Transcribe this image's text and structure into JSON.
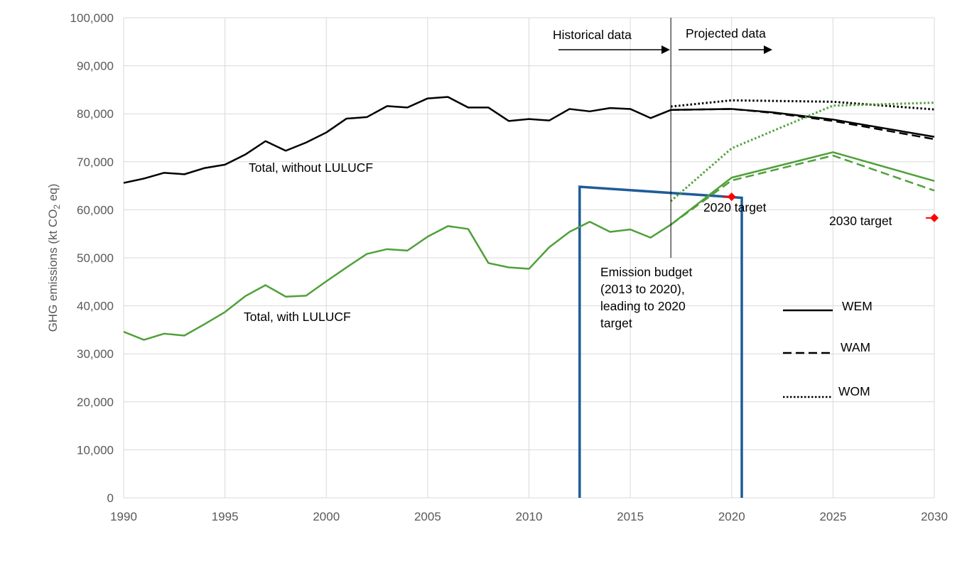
{
  "chart_data": {
    "type": "line",
    "ylabel": "GHG emissions (kt CO2 eq)",
    "ylabel_parts": {
      "before": "GHG emissions (kt CO",
      "sub": "2",
      "after": " eq)"
    },
    "xlim": [
      1990,
      2030
    ],
    "ylim": [
      0,
      100000
    ],
    "x_ticks": [
      1990,
      1995,
      2000,
      2005,
      2010,
      2015,
      2020,
      2025,
      2030
    ],
    "y_ticks": [
      0,
      10000,
      20000,
      30000,
      40000,
      50000,
      60000,
      70000,
      80000,
      90000,
      100000
    ],
    "x_tick_labels": [
      "1990",
      "1995",
      "2000",
      "2005",
      "2010",
      "2015",
      "2020",
      "2025",
      "2030"
    ],
    "y_tick_labels": [
      "0",
      "10,000",
      "20,000",
      "30,000",
      "40,000",
      "50,000",
      "60,000",
      "70,000",
      "80,000",
      "90,000",
      "100,000"
    ],
    "grid": true,
    "colors": {
      "total_without": "#000000",
      "total_with": "#4fa03a",
      "budget": "#1f5c99",
      "target": "#ff0000",
      "grid": "#d9d9d9",
      "axis_text": "#595959"
    },
    "series": [
      {
        "name": "Total, without LULUCF",
        "group": "without",
        "scenario": "historical",
        "style": "solid",
        "x": [
          1990,
          1991,
          1992,
          1993,
          1994,
          1995,
          1996,
          1997,
          1998,
          1999,
          2000,
          2001,
          2002,
          2003,
          2004,
          2005,
          2006,
          2007,
          2008,
          2009,
          2010,
          2011,
          2012,
          2013,
          2014,
          2015,
          2016,
          2017
        ],
        "y": [
          65600,
          66500,
          67700,
          67400,
          68700,
          69400,
          71500,
          74300,
          72300,
          74000,
          76100,
          79000,
          79300,
          81600,
          81300,
          83200,
          83500,
          81300,
          81300,
          78500,
          78900,
          78600,
          81000,
          80500,
          81200,
          81000,
          79100,
          80800
        ]
      },
      {
        "name": "WEM",
        "group": "without",
        "style": "solid",
        "x": [
          2017,
          2020,
          2022,
          2025,
          2030
        ],
        "y": [
          80800,
          81000,
          80300,
          78800,
          75200
        ]
      },
      {
        "name": "WAM",
        "group": "without",
        "style": "dashed",
        "x": [
          2017,
          2020,
          2022,
          2025,
          2030
        ],
        "y": [
          80800,
          81000,
          80200,
          78500,
          74700
        ]
      },
      {
        "name": "WOM",
        "group": "without",
        "style": "dotted",
        "x": [
          2017,
          2020,
          2025,
          2030
        ],
        "y": [
          81500,
          82800,
          82500,
          80900
        ]
      },
      {
        "name": "Total, with LULUCF",
        "group": "with",
        "scenario": "historical",
        "style": "solid",
        "x": [
          1990,
          1991,
          1992,
          1993,
          1994,
          1995,
          1996,
          1997,
          1998,
          1999,
          2000,
          2001,
          2002,
          2003,
          2004,
          2005,
          2006,
          2007,
          2008,
          2009,
          2010,
          2011,
          2012,
          2013,
          2014,
          2015,
          2016,
          2017
        ],
        "y": [
          34600,
          32900,
          34200,
          33800,
          36200,
          38700,
          42000,
          44300,
          41900,
          42100,
          45100,
          48000,
          50800,
          51800,
          51500,
          54400,
          56600,
          56000,
          48900,
          48000,
          47700,
          52200,
          55400,
          57500,
          55400,
          55900,
          54200,
          56900
        ]
      },
      {
        "name": "WEM",
        "group": "with",
        "style": "solid",
        "x": [
          2017,
          2020,
          2025,
          2030
        ],
        "y": [
          56900,
          66700,
          72000,
          66000
        ]
      },
      {
        "name": "WAM",
        "group": "with",
        "style": "dashed",
        "x": [
          2017,
          2020,
          2025,
          2030
        ],
        "y": [
          56900,
          66100,
          71300,
          64000
        ]
      },
      {
        "name": "WOM",
        "group": "with",
        "style": "dotted",
        "x": [
          2017,
          2020,
          2025,
          2030
        ],
        "y": [
          61800,
          72800,
          81700,
          82300
        ]
      }
    ],
    "emission_budget": {
      "x_start": 2012.5,
      "x_end": 2020.5,
      "y_start": 64800,
      "y_end": 62500
    },
    "targets": [
      {
        "label": "2020 target",
        "x": 2020,
        "y": 62700
      },
      {
        "label": "2030 target",
        "x": 2030,
        "y": 58300
      }
    ],
    "divider_year": 2017,
    "annotations": {
      "historical": "Historical data",
      "projected": "Projected data",
      "total_without": "Total, without LULUCF",
      "total_with": "Total, with LULUCF",
      "budget_lines": [
        "Emission budget",
        "(2013 to 2020),",
        "leading to 2020",
        "target"
      ],
      "target_2020": "2020 target",
      "target_2030": "2030 target"
    },
    "legend": {
      "position": "right",
      "items": [
        {
          "label": "WEM",
          "style": "solid"
        },
        {
          "label": "WAM",
          "style": "dashed"
        },
        {
          "label": "WOM",
          "style": "dotted"
        }
      ]
    }
  }
}
